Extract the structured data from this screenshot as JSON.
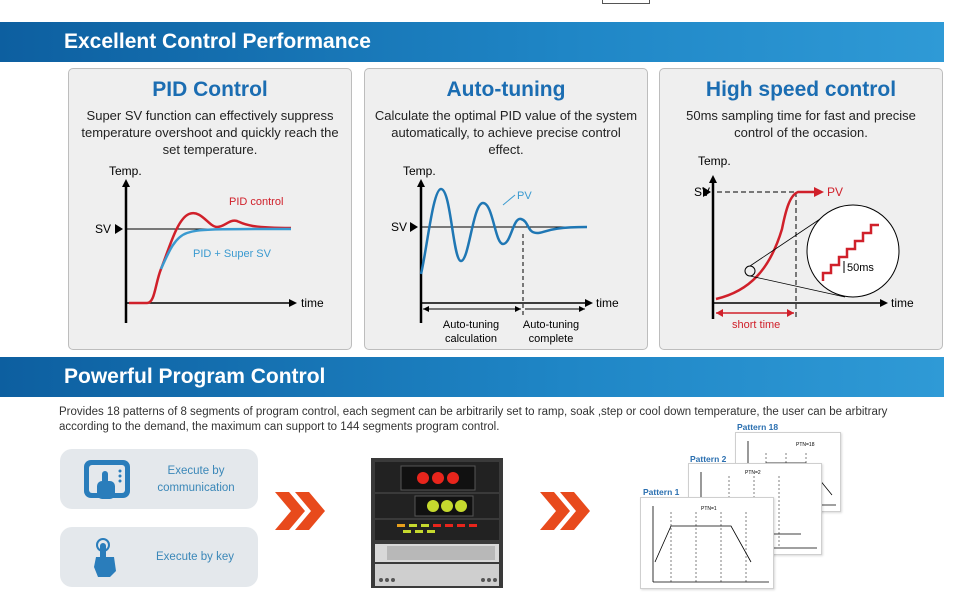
{
  "sections": [
    {
      "title": "Excellent Control Performance"
    },
    {
      "title": "Powerful Program Control"
    }
  ],
  "panels": [
    {
      "title": "PID Control",
      "text": "Super SV function can effectively suppress temperature overshoot and quickly reach the set temperature.",
      "y_label": "Temp.",
      "sv_label": "SV",
      "x_label": "time",
      "series": [
        "PID control",
        "PID + Super SV"
      ]
    },
    {
      "title": "Auto-tuning",
      "text": "Calculate the optimal PID value of the system automatically, to achieve precise control effect.",
      "y_label": "Temp.",
      "sv_label": "SV",
      "x_label": "time",
      "series": [
        "PV"
      ],
      "phase_1": [
        "Auto-tuning",
        "calculation"
      ],
      "phase_2": [
        "Auto-tuning",
        "complete"
      ]
    },
    {
      "title": "High speed control",
      "text": "50ms sampling time for fast and precise control of the occasion.",
      "y_label": "Temp.",
      "sv_label": "SV",
      "x_label": "time",
      "series": [
        "PV"
      ],
      "step_label": "50ms",
      "interval_label": "short time"
    }
  ],
  "program": {
    "description": "Provides 18 patterns of 8 segments of program control, each segment can be arbitrarily set to ramp, soak ,step or cool down temperature, the user can be arbitrary according to the demand, the maximum can support to 144 segments program control.",
    "buttons": [
      {
        "label": "Execute by communication",
        "icon": "touchscreen-hand-icon"
      },
      {
        "label": "Execute by key",
        "icon": "finger-press-icon"
      }
    ],
    "patterns": [
      {
        "label": "Pattern 1",
        "ptn": "PTN=1"
      },
      {
        "label": "Pattern 2",
        "ptn": "PTN=2"
      },
      {
        "label": "Pattern 18",
        "ptn": "PTN=18"
      }
    ]
  },
  "colors": {
    "banner": "#1a76b9",
    "title_blue": "#1b6db2",
    "red_series": "#d0202a",
    "blue_series": "#3a9ad0",
    "chevron": "#e84a1c"
  }
}
